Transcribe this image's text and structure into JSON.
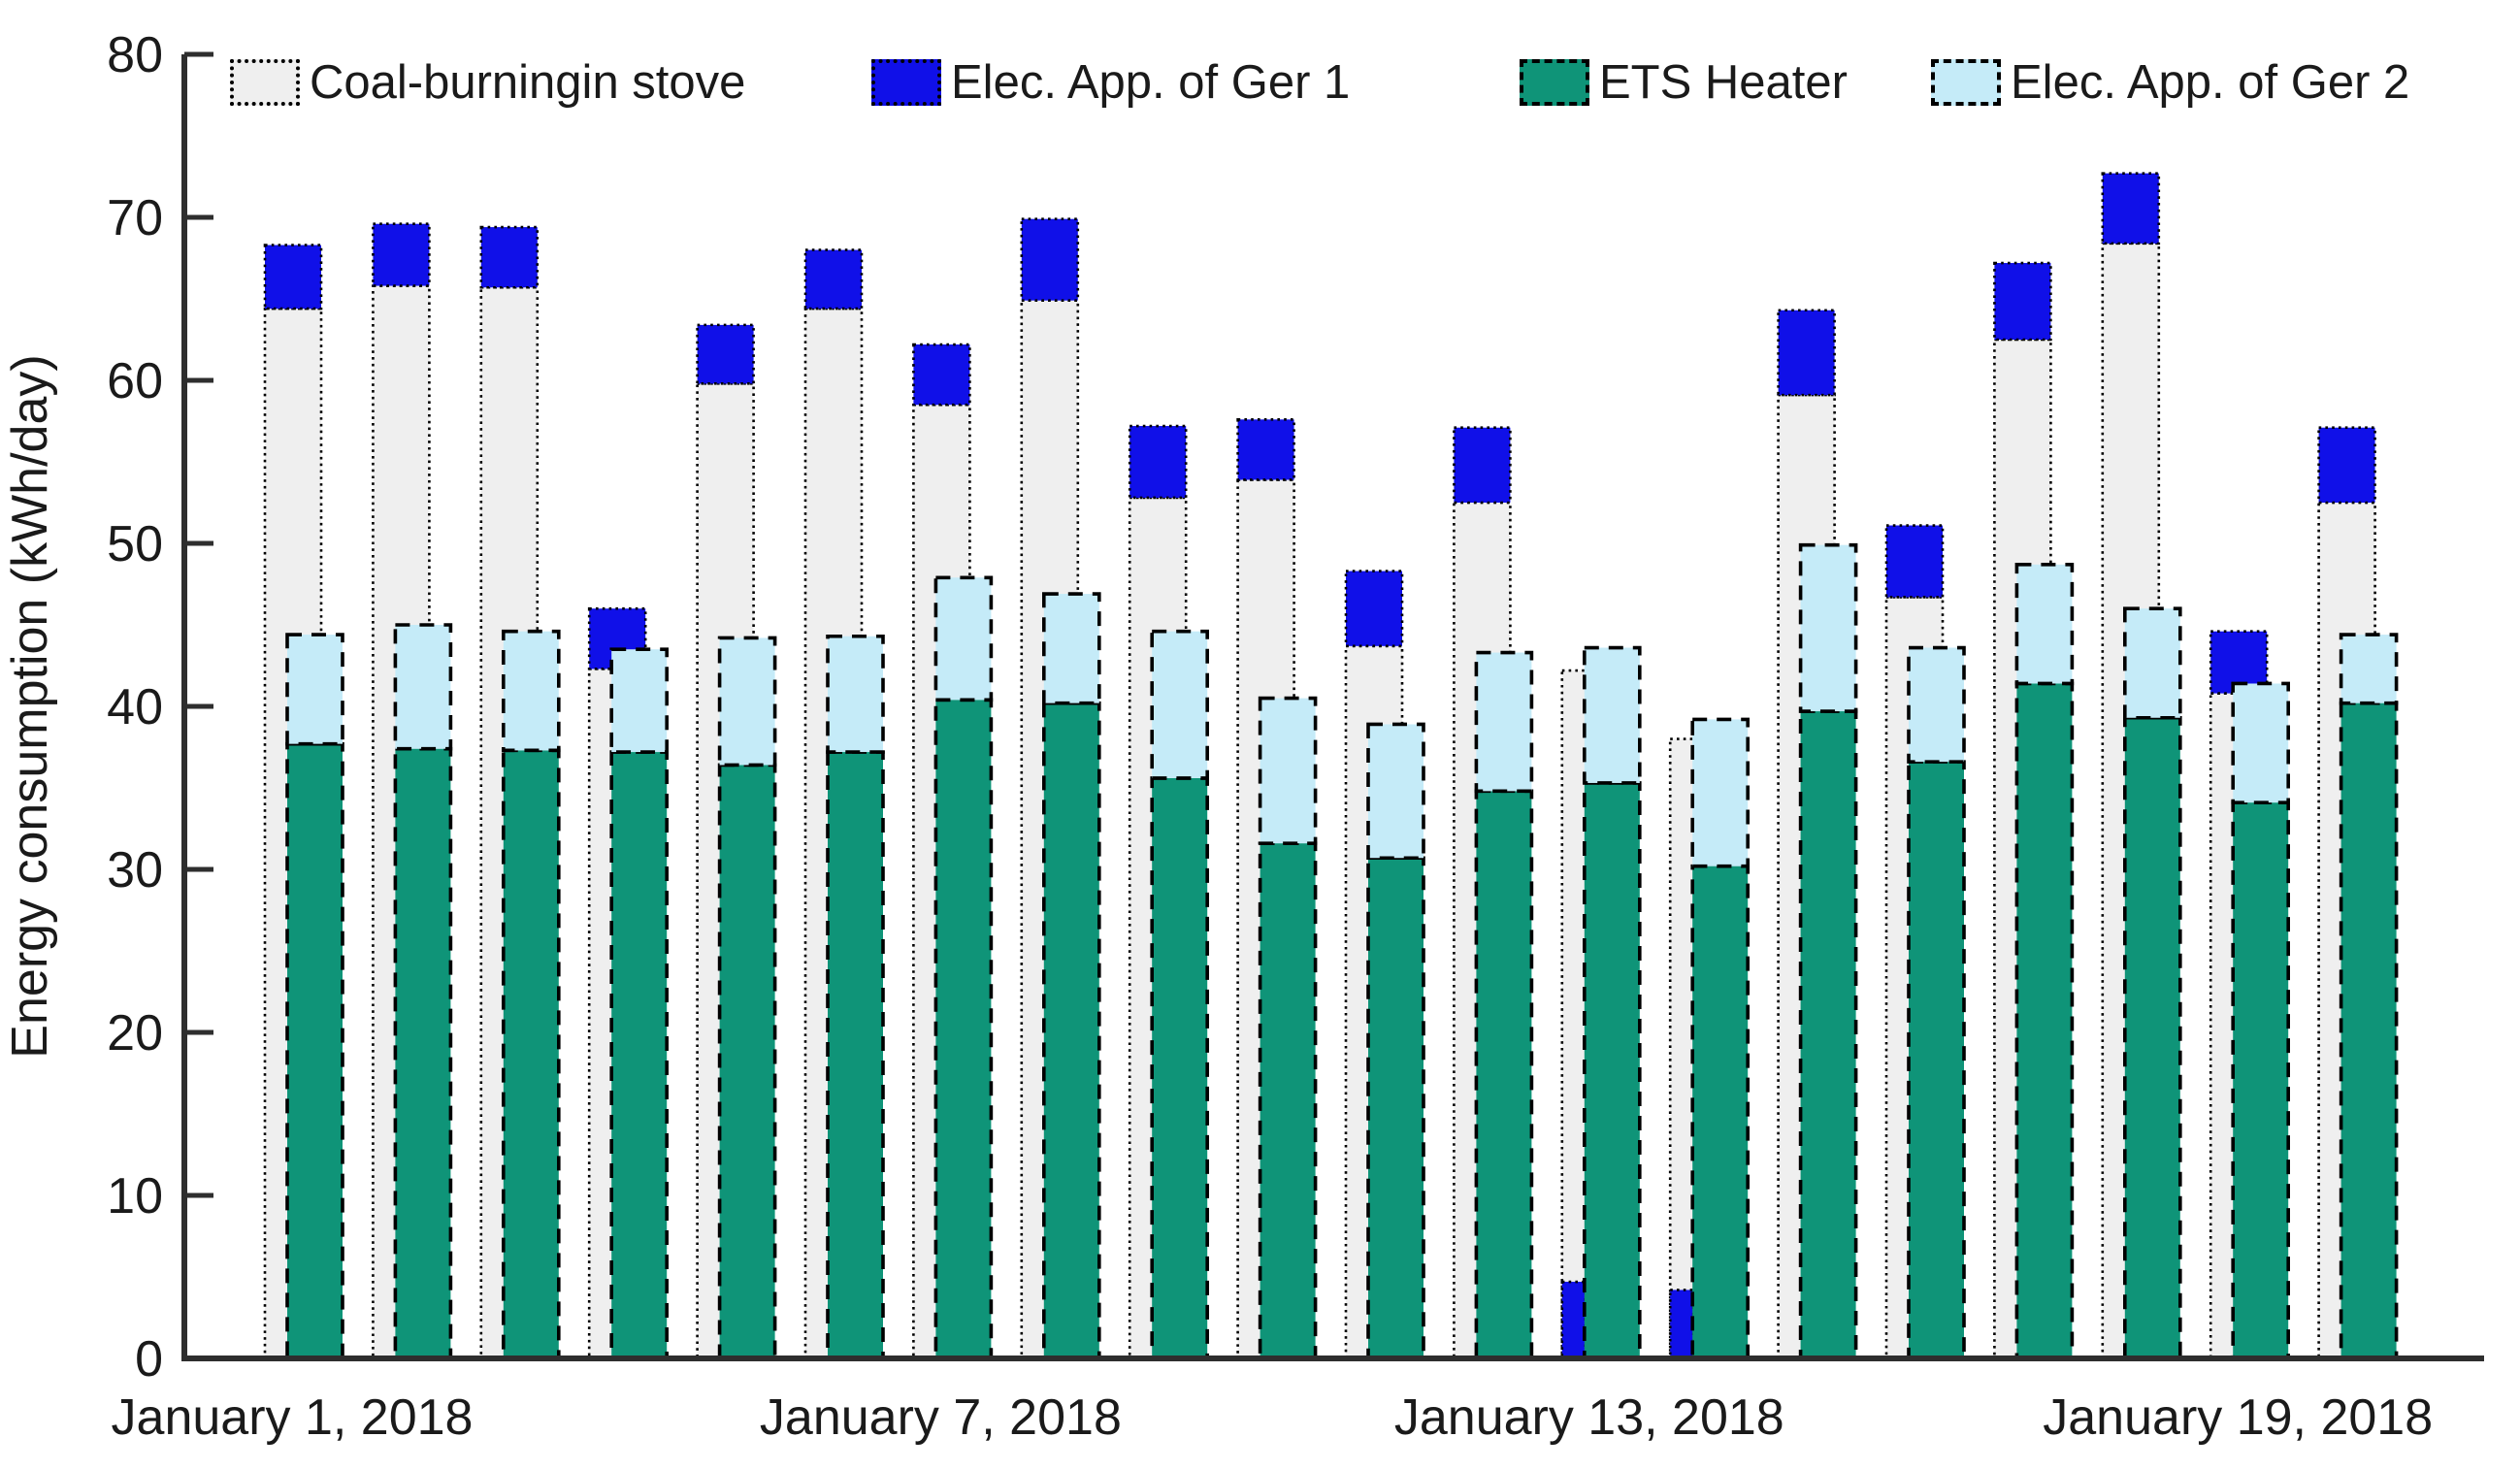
{
  "chart_data": {
    "type": "bar",
    "title": "",
    "xlabel": "",
    "ylabel": "Energy consumption (kWh/day)",
    "ylim": [
      0,
      80
    ],
    "y_ticks": [
      0,
      10,
      20,
      30,
      40,
      50,
      60,
      70,
      80
    ],
    "grid": false,
    "legend_position": "top-inside",
    "legend": [
      {
        "label": "Coal-burningin stove",
        "color": "#efefef",
        "border": "dotted"
      },
      {
        "label": "Elec. App. of Ger 1",
        "color": "#1010e8",
        "border": "dotted"
      },
      {
        "label": "ETS Heater",
        "color": "#0f9478",
        "border": "dashed"
      },
      {
        "label": "Elec. App. of Ger 2",
        "color": "#c5ebf8",
        "border": "dashed"
      }
    ],
    "x_tick_labels": [
      {
        "day": 1,
        "label": "January 1, 2018"
      },
      {
        "day": 7,
        "label": "January 7, 2018"
      },
      {
        "day": 13,
        "label": "January 13, 2018"
      },
      {
        "day": 19,
        "label": "January 19, 2018"
      }
    ],
    "days": [
      {
        "day": 1,
        "coal": 64.4,
        "elec_ger1": 3.9,
        "elec_ger1_at_bottom": false,
        "ets": 37.7,
        "elec_ger2": 6.7
      },
      {
        "day": 2,
        "coal": 65.8,
        "elec_ger1": 3.8,
        "elec_ger1_at_bottom": false,
        "ets": 37.4,
        "elec_ger2": 7.6
      },
      {
        "day": 3,
        "coal": 65.7,
        "elec_ger1": 3.7,
        "elec_ger1_at_bottom": false,
        "ets": 37.3,
        "elec_ger2": 7.3
      },
      {
        "day": 4,
        "coal": 42.3,
        "elec_ger1": 3.7,
        "elec_ger1_at_bottom": false,
        "ets": 37.2,
        "elec_ger2": 6.3
      },
      {
        "day": 5,
        "coal": 59.8,
        "elec_ger1": 3.6,
        "elec_ger1_at_bottom": false,
        "ets": 36.4,
        "elec_ger2": 7.8
      },
      {
        "day": 6,
        "coal": 64.4,
        "elec_ger1": 3.6,
        "elec_ger1_at_bottom": false,
        "ets": 37.2,
        "elec_ger2": 7.1
      },
      {
        "day": 7,
        "coal": 58.5,
        "elec_ger1": 3.7,
        "elec_ger1_at_bottom": false,
        "ets": 40.4,
        "elec_ger2": 7.5
      },
      {
        "day": 8,
        "coal": 64.9,
        "elec_ger1": 5.0,
        "elec_ger1_at_bottom": false,
        "ets": 40.2,
        "elec_ger2": 6.7
      },
      {
        "day": 9,
        "coal": 52.8,
        "elec_ger1": 4.4,
        "elec_ger1_at_bottom": false,
        "ets": 35.6,
        "elec_ger2": 9.0
      },
      {
        "day": 10,
        "coal": 53.9,
        "elec_ger1": 3.7,
        "elec_ger1_at_bottom": false,
        "ets": 31.6,
        "elec_ger2": 8.9
      },
      {
        "day": 11,
        "coal": 43.7,
        "elec_ger1": 4.6,
        "elec_ger1_at_bottom": false,
        "ets": 30.7,
        "elec_ger2": 8.2
      },
      {
        "day": 12,
        "coal": 52.5,
        "elec_ger1": 4.6,
        "elec_ger1_at_bottom": false,
        "ets": 34.8,
        "elec_ger2": 8.5
      },
      {
        "day": 13,
        "coal": 42.2,
        "elec_ger1": 4.7,
        "elec_ger1_at_bottom": true,
        "ets": 35.3,
        "elec_ger2": 8.3
      },
      {
        "day": 14,
        "coal": 38.0,
        "elec_ger1": 4.2,
        "elec_ger1_at_bottom": true,
        "ets": 30.2,
        "elec_ger2": 9.0
      },
      {
        "day": 15,
        "coal": 59.1,
        "elec_ger1": 5.2,
        "elec_ger1_at_bottom": false,
        "ets": 39.7,
        "elec_ger2": 10.2
      },
      {
        "day": 16,
        "coal": 46.7,
        "elec_ger1": 4.4,
        "elec_ger1_at_bottom": false,
        "ets": 36.6,
        "elec_ger2": 7.0
      },
      {
        "day": 17,
        "coal": 62.5,
        "elec_ger1": 4.7,
        "elec_ger1_at_bottom": false,
        "ets": 41.4,
        "elec_ger2": 7.3
      },
      {
        "day": 18,
        "coal": 68.4,
        "elec_ger1": 4.3,
        "elec_ger1_at_bottom": false,
        "ets": 39.3,
        "elec_ger2": 6.7
      },
      {
        "day": 19,
        "coal": 40.8,
        "elec_ger1": 3.8,
        "elec_ger1_at_bottom": false,
        "ets": 34.1,
        "elec_ger2": 7.3
      },
      {
        "day": 20,
        "coal": 52.5,
        "elec_ger1": 4.6,
        "elec_ger1_at_bottom": false,
        "ets": 40.2,
        "elec_ger2": 4.2
      }
    ]
  },
  "colors": {
    "coal_fill": "#efefef",
    "elec_ger1_fill": "#1010e8",
    "ets_fill": "#0f9478",
    "elec_ger2_fill": "#c5ebf8",
    "bar_edge": "#000000",
    "axis": "#2e2e2e",
    "tick_text": "#1a1a1a"
  }
}
